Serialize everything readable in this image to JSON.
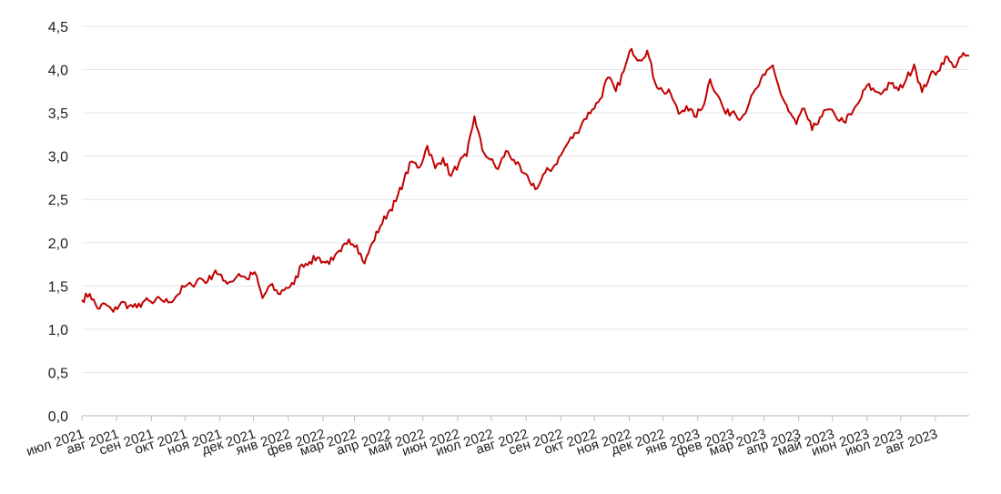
{
  "chart_data": {
    "type": "line",
    "title": "",
    "xlabel": "",
    "ylabel": "",
    "ylim": [
      0,
      4.5
    ],
    "grid": true,
    "legend": "none",
    "y_ticks": [
      "0,0",
      "0,5",
      "1,0",
      "1,5",
      "2,0",
      "2,5",
      "3,0",
      "3,5",
      "4,0",
      "4,5"
    ],
    "x_ticks": [
      "июл 2021",
      "авг 2021",
      "сен 2021",
      "окт 2021",
      "ноя 2021",
      "дек 2021",
      "янв 2022",
      "фев 2022",
      "мар 2022",
      "апр 2022",
      "май 2022",
      "июн 2022",
      "июл 2022",
      "авг 2022",
      "сен 2022",
      "окт 2022",
      "ноя 2022",
      "дек 2022",
      "янв 2023",
      "фев 2023",
      "мар 2023",
      "апр 2023",
      "май 2023",
      "июн 2023",
      "июл 2023",
      "авг 2023"
    ],
    "line_color": "#c00000",
    "series": [
      {
        "x": [
          "2021-07-01",
          "2021-07-08",
          "2021-07-15",
          "2021-07-22",
          "2021-07-29",
          "2021-08-05",
          "2021-08-12",
          "2021-08-19",
          "2021-08-26",
          "2021-09-02",
          "2021-09-09",
          "2021-09-16",
          "2021-09-23",
          "2021-09-30",
          "2021-10-07",
          "2021-10-14",
          "2021-10-21",
          "2021-10-28",
          "2021-11-04",
          "2021-11-11",
          "2021-11-18",
          "2021-11-25",
          "2021-12-02",
          "2021-12-09",
          "2021-12-16",
          "2021-12-23",
          "2021-12-30",
          "2022-01-06",
          "2022-01-13",
          "2022-01-20",
          "2022-01-27",
          "2022-02-03",
          "2022-02-10",
          "2022-02-17",
          "2022-02-24",
          "2022-03-03",
          "2022-03-10",
          "2022-03-17",
          "2022-03-24",
          "2022-03-31",
          "2022-04-07",
          "2022-04-14",
          "2022-04-21",
          "2022-04-28",
          "2022-05-05",
          "2022-05-12",
          "2022-05-19",
          "2022-05-26",
          "2022-06-02",
          "2022-06-09",
          "2022-06-16",
          "2022-06-23",
          "2022-06-30",
          "2022-07-07",
          "2022-07-14",
          "2022-07-21",
          "2022-07-28",
          "2022-08-04",
          "2022-08-11",
          "2022-08-18",
          "2022-08-25",
          "2022-09-01",
          "2022-09-08",
          "2022-09-15",
          "2022-09-22",
          "2022-09-29",
          "2022-10-06",
          "2022-10-13",
          "2022-10-20",
          "2022-10-27",
          "2022-11-03",
          "2022-11-10",
          "2022-11-17",
          "2022-11-24",
          "2022-12-01",
          "2022-12-08",
          "2022-12-15",
          "2022-12-22",
          "2022-12-29",
          "2023-01-05",
          "2023-01-12",
          "2023-01-19",
          "2023-01-26",
          "2023-02-02",
          "2023-02-09",
          "2023-02-16",
          "2023-02-23",
          "2023-03-02",
          "2023-03-09",
          "2023-03-16",
          "2023-03-23",
          "2023-03-30",
          "2023-04-06",
          "2023-04-13",
          "2023-04-20",
          "2023-04-27",
          "2023-05-04",
          "2023-05-11",
          "2023-05-18",
          "2023-05-25",
          "2023-06-01",
          "2023-06-08",
          "2023-06-15",
          "2023-06-22",
          "2023-06-29",
          "2023-07-06",
          "2023-07-13",
          "2023-07-20",
          "2023-07-27",
          "2023-08-03",
          "2023-08-10",
          "2023-08-17",
          "2023-08-24",
          "2023-08-31"
        ],
        "values": [
          1.34,
          1.41,
          1.24,
          1.29,
          1.2,
          1.31,
          1.27,
          1.25,
          1.33,
          1.3,
          1.35,
          1.31,
          1.38,
          1.49,
          1.51,
          1.59,
          1.55,
          1.68,
          1.56,
          1.55,
          1.64,
          1.58,
          1.66,
          1.36,
          1.51,
          1.41,
          1.48,
          1.52,
          1.75,
          1.78,
          1.83,
          1.77,
          1.8,
          1.9,
          2.04,
          1.97,
          1.76,
          2.0,
          2.19,
          2.35,
          2.48,
          2.72,
          2.94,
          2.87,
          3.12,
          2.86,
          2.98,
          2.77,
          2.92,
          3.0,
          3.46,
          3.07,
          2.96,
          2.85,
          3.06,
          2.96,
          2.82,
          2.71,
          2.63,
          2.81,
          2.87,
          3.01,
          3.17,
          3.27,
          3.43,
          3.54,
          3.66,
          3.91,
          3.75,
          3.98,
          4.24,
          4.11,
          4.22,
          3.85,
          3.75,
          3.72,
          3.49,
          3.58,
          3.46,
          3.55,
          3.89,
          3.7,
          3.49,
          3.52,
          3.44,
          3.62,
          3.79,
          3.94,
          4.05,
          3.72,
          3.52,
          3.37,
          3.55,
          3.3,
          3.45,
          3.54,
          3.46,
          3.4,
          3.48,
          3.63,
          3.82,
          3.75,
          3.74,
          3.84,
          3.76,
          3.89,
          4.06,
          3.74,
          3.93,
          3.98,
          4.15,
          4.03,
          4.15,
          4.16
        ]
      }
    ]
  }
}
